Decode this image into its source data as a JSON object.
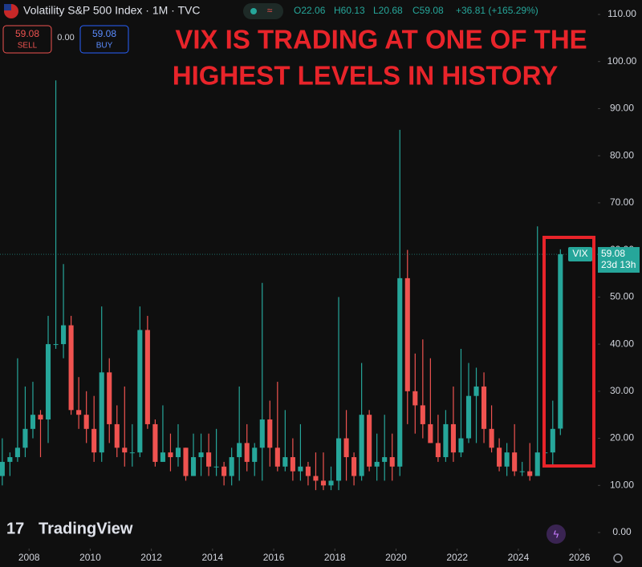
{
  "header": {
    "symbol": "Volatility S&P 500 Index · 1M · TVC",
    "ohlc": [
      "O22.06",
      "H60.13",
      "L20.68",
      "C59.08"
    ],
    "change": "+36.81 (+165.29%)",
    "sell_price": "59.08",
    "sell": "SELL",
    "spread": "0.00",
    "buy_price": "59.08",
    "buy": "BUY"
  },
  "logo": "TradingView",
  "chart_data": {
    "type": "candlestick",
    "title": [
      "VIX IS TRADING AT ONE OF THE",
      "HIGHEST LEVELS IN HISTORY"
    ],
    "x": [
      2007.125,
      2007.375,
      2007.625,
      2007.875,
      2008.125,
      2008.375,
      2008.625,
      2008.875,
      2009.125,
      2009.375,
      2009.625,
      2009.875,
      2010.125,
      2010.375,
      2010.625,
      2010.875,
      2011.125,
      2011.375,
      2011.625,
      2011.875,
      2012.125,
      2012.375,
      2012.625,
      2012.875,
      2013.125,
      2013.375,
      2013.625,
      2013.875,
      2014.125,
      2014.375,
      2014.625,
      2014.875,
      2015.125,
      2015.375,
      2015.625,
      2015.875,
      2016.125,
      2016.375,
      2016.625,
      2016.875,
      2017.125,
      2017.375,
      2017.625,
      2017.875,
      2018.125,
      2018.375,
      2018.625,
      2018.875,
      2019.125,
      2019.375,
      2019.625,
      2019.875,
      2020.125,
      2020.375,
      2020.625,
      2020.875,
      2021.125,
      2021.375,
      2021.625,
      2021.875,
      2022.125,
      2022.375,
      2022.625,
      2022.875,
      2023.125,
      2023.375,
      2023.625,
      2023.875,
      2024.125,
      2024.375,
      2024.625,
      2024.875,
      2025.125,
      2025.375
    ],
    "open": [
      12,
      15,
      16,
      18,
      22,
      25,
      24,
      40,
      40,
      44,
      26,
      25,
      22,
      17,
      34,
      23,
      18,
      17,
      17,
      43,
      23,
      15,
      17,
      16,
      18,
      12,
      16,
      17,
      14,
      14,
      12,
      16,
      19,
      15,
      18,
      24,
      18,
      14,
      16,
      13,
      14,
      12,
      11,
      10,
      11,
      20,
      16,
      12,
      25,
      14,
      15,
      16,
      14,
      54,
      30,
      27,
      23,
      19,
      16,
      23,
      17,
      20,
      29,
      31,
      22,
      18,
      14,
      17,
      13,
      13,
      12,
      17,
      17,
      22.06
    ],
    "high": [
      20,
      17,
      37,
      31,
      32,
      26,
      46,
      96,
      57,
      46,
      33,
      30,
      29,
      48,
      37,
      27,
      31,
      23,
      48,
      46,
      24,
      27,
      21,
      23,
      18,
      21,
      21,
      21,
      22,
      15,
      18,
      31,
      23,
      19,
      53,
      28,
      32,
      26,
      20,
      23,
      15,
      17,
      17,
      14,
      50,
      26,
      17,
      36,
      26,
      21,
      25,
      21,
      85.5,
      60,
      38,
      41,
      37,
      25,
      26,
      31,
      39,
      36,
      35,
      34,
      27,
      20,
      19,
      23,
      15,
      19,
      65,
      28,
      28,
      60.13
    ],
    "low": [
      10,
      12,
      15,
      16,
      20,
      16,
      19,
      39,
      37,
      25,
      22,
      19,
      15,
      15,
      19,
      16,
      14,
      14,
      16,
      22,
      14,
      15,
      13,
      14,
      11,
      12,
      12,
      12,
      12,
      10,
      10,
      11,
      13,
      12,
      11,
      14,
      13,
      13,
      11,
      11,
      10,
      9,
      9,
      9,
      9,
      11,
      10,
      11,
      13,
      11,
      11,
      11,
      12,
      23,
      21,
      20,
      19,
      15,
      15,
      15,
      16,
      19,
      19,
      19,
      17,
      13,
      12,
      12,
      12,
      11,
      12,
      14,
      14,
      20.68
    ],
    "close": [
      15,
      16,
      18,
      22,
      25,
      24,
      40,
      40,
      44,
      26,
      25,
      22,
      17,
      34,
      23,
      18,
      17,
      17,
      43,
      23,
      15,
      17,
      16,
      18,
      12,
      16,
      17,
      14,
      14,
      12,
      16,
      19,
      15,
      18,
      24,
      18,
      14,
      16,
      13,
      14,
      12,
      11,
      10,
      11,
      20,
      16,
      12,
      25,
      14,
      15,
      16,
      14,
      54,
      30,
      27,
      23,
      19,
      16,
      23,
      17,
      20,
      29,
      31,
      22,
      18,
      14,
      17,
      13,
      13,
      12,
      17,
      17,
      22,
      59.08
    ],
    "up_color": "#26a69a",
    "down_color": "#ef5350",
    "series_label": "VIX",
    "last_price_label": "59.08",
    "countdown": "23d 13h",
    "xlim": [
      2007.05,
      2026.6
    ],
    "xticks": [
      2008,
      2010,
      2012,
      2014,
      2016,
      2018,
      2020,
      2022,
      2024,
      2026
    ],
    "ylim": [
      0,
      110
    ],
    "yticks": [
      {
        "value": 0,
        "label": "0.00"
      },
      {
        "value": 10,
        "label": "10.00"
      },
      {
        "value": 20,
        "label": "20.00"
      },
      {
        "value": 30,
        "label": "30.00"
      },
      {
        "value": 40,
        "label": "40.00"
      },
      {
        "value": 50,
        "label": "50.00"
      },
      {
        "value": 60,
        "label": "60.00"
      },
      {
        "value": 70,
        "label": "70.00"
      },
      {
        "value": 80,
        "label": "80.00"
      },
      {
        "value": 90,
        "label": "90.00"
      },
      {
        "value": 100,
        "label": "100.00"
      },
      {
        "value": 110,
        "label": "110.00"
      }
    ]
  }
}
